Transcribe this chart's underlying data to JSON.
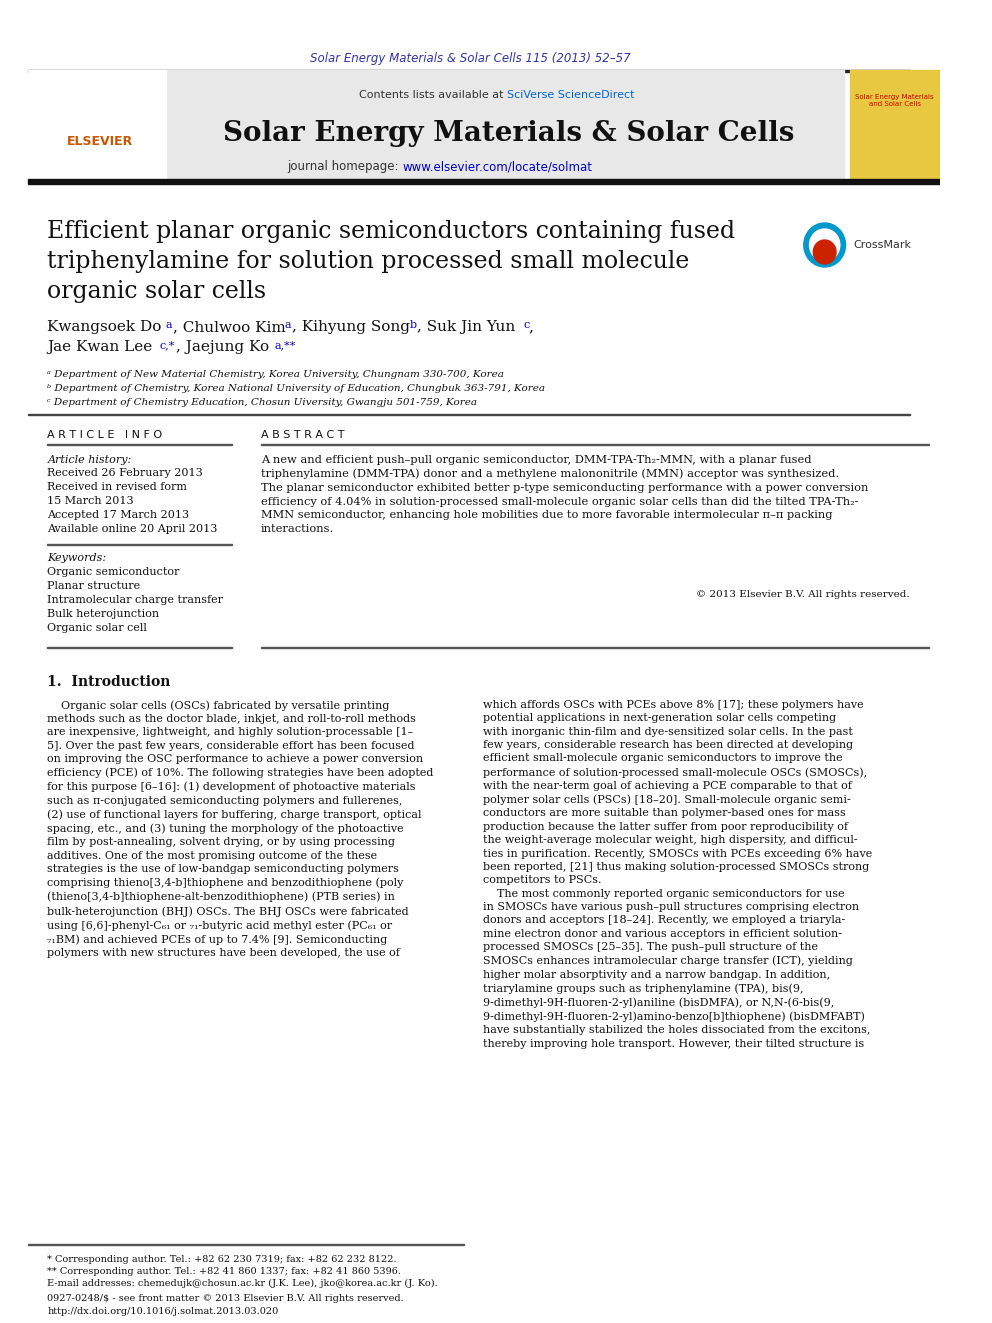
{
  "page_bg": "#ffffff",
  "header_journal_ref": "Solar Energy Materials & Solar Cells 115 (2013) 52–57",
  "header_journal_ref_color": "#3333aa",
  "journal_title": "Solar Energy Materials & Solar Cells",
  "journal_homepage": "journal homepage: www.elsevier.com/locate/solmat",
  "homepage_color": "#0000cc",
  "header_bg": "#e8e8e8",
  "article_title": "Efficient planar organic semiconductors containing fused\ntriphenylamine for solution processed small molecule\norganic solar cells",
  "authors": "Kwangsoek Do ᵃ, Chulwoo Kim ᵃ, Kihyung Song ᵇ, Suk Jin Yun ᶜ,\nJae Kwan Lee ᶜ,⁎, Jaejung Ko ᵃ,⁎⁎",
  "affil_a": "ᵃ Department of New Material Chemistry, Korea University, Chungnam 330-700, Korea",
  "affil_b": "ᵇ Department of Chemistry, Korea National University of Education, Chungbuk 363-791, Korea",
  "affil_c": "ᶜ Department of Chemistry Education, Chosun Uiversity, Gwangju 501-759, Korea",
  "article_info_title": "A R T I C L E   I N F O",
  "article_history_label": "Article history:",
  "article_history": "Received 26 February 2013\nReceived in revised form\n15 March 2013\nAccepted 17 March 2013\nAvailable online 20 April 2013",
  "keywords_label": "Keywords:",
  "keywords": "Organic semiconductor\nPlanar structure\nIntramolecular charge transfer\nBulk heterojunction\nOrganic solar cell",
  "abstract_title": "A B S T R A C T",
  "abstract_text": "A new and efficient push–pull organic semiconductor, DMM-TPA-Th₂-MMN, with a planar fused\ntriphenylamine (DMM-TPA) donor and a methylene malononitrile (MMN) acceptor was synthesized.\nThe planar semiconductor exhibited better p-type semiconducting performance with a power conversion\nefficiency of 4.04% in solution-processed small-molecule organic solar cells than did the tilted TPA-Th₂-\nMMN semiconductor, enhancing hole mobilities due to more favorable intermolecular π–π packing\ninteractions.",
  "copyright": "© 2013 Elsevier B.V. All rights reserved.",
  "intro_title": "1.  Introduction",
  "intro_col1": "    Organic solar cells (OSCs) fabricated by versatile printing\nmethods such as the doctor blade, inkjet, and roll-to-roll methods\nare inexpensive, lightweight, and highly solution-processable [1–\n5]. Over the past few years, considerable effort has been focused\non improving the OSC performance to achieve a power conversion\nefficiency (PCE) of 10%. The following strategies have been adopted\nfor this purpose [6–16]: (1) development of photoactive materials\nsuch as π-conjugated semiconducting polymers and fullerenes,\n(2) use of functional layers for buffering, charge transport, optical\nspacing, etc., and (3) tuning the morphology of the photoactive\nfilm by post-annealing, solvent drying, or by using processing\nadditives. One of the most promising outcome of the these\nstrategies is the use of low-bandgap semiconducting polymers\ncomprising thieno[3,4-b]thiophene and benzodithiophene (poly\n(thieno[3,4-b]thiophene-alt-benzodithiophene) (PTB series) in\nbulk-heterojunction (BHJ) OSCs. The BHJ OSCs were fabricated\nusing [6,6]-phenyl-C₆₁ or ₇₁-butyric acid methyl ester (PC₆₁ or\n₇₁BM) and achieved PCEs of up to 7.4% [9]. Semiconducting\npolymers with new structures have been developed, the use of",
  "intro_col2": "which affords OSCs with PCEs above 8% [17]; these polymers have\npotential applications in next-generation solar cells competing\nwith inorganic thin-film and dye-sensitized solar cells. In the past\nfew years, considerable research has been directed at developing\nefficient small-molecule organic semiconductors to improve the\nperformance of solution-processed small-molecule OSCs (SMOSCs),\nwith the near-term goal of achieving a PCE comparable to that of\npolymer solar cells (PSCs) [18–20]. Small-molecule organic semi-\nconductors are more suitable than polymer-based ones for mass\nproduction because the latter suffer from poor reproducibility of\nthe weight-average molecular weight, high dispersity, and difficul-\nties in purification. Recently, SMOSCs with PCEs exceeding 6% have\nbeen reported, [21] thus making solution-processed SMOSCs strong\ncompetitors to PSCs.\n    The most commonly reported organic semiconductors for use\nin SMOSCs have various push–pull structures comprising electron\ndonors and acceptors [18–24]. Recently, we employed a triaryla-\nmine electron donor and various acceptors in efficient solution-\nprocessed SMOSCs [25–35]. The push–pull structure of the\nSMOSCs enhances intramolecular charge transfer (ICT), yielding\nhigher molar absorptivity and a narrow bandgap. In addition,\ntriarylamine groups such as triphenylamine (TPA), bis(9,\n9-dimethyl-9H-fluoren-2-yl)aniline (bisDMFA), or N,N-(6-bis(9,\n9-dimethyl-9H-fluoren-2-yl)amino-benzo[b]thiophene) (bisDMFABT)\nhave substantially stabilized the holes dissociated from the excitons,\nthereby improving hole transport. However, their tilted structure is",
  "footer1": "* Corresponding author. Tel.: +82 62 230 7319; fax: +82 62 232 8122.",
  "footer2": "** Corresponding author. Tel.: +82 41 860 1337; fax: +82 41 860 5396.",
  "footer3": "E-mail addresses: chemedujk@chosun.ac.kr (J.K. Lee), jko@korea.ac.kr (J. Ko).",
  "footer4": "0927-0248/$ - see front matter © 2013 Elsevier B.V. All rights reserved.",
  "footer5": "http://dx.doi.org/10.1016/j.solmat.2013.03.020"
}
